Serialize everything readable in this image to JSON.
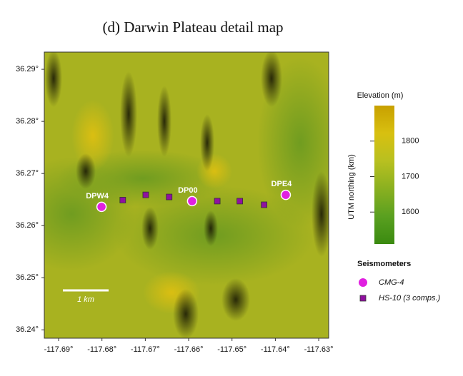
{
  "chart_data": {
    "type": "scatter",
    "title": "(d) Darwin Plateau detail map",
    "xlim": [
      -117.6933,
      -117.6277
    ],
    "ylim": [
      36.2384,
      36.2933
    ],
    "xticks": [
      {
        "value": -117.69,
        "label": "-117.69°"
      },
      {
        "value": -117.68,
        "label": "-117.68°"
      },
      {
        "value": -117.67,
        "label": "-117.67°"
      },
      {
        "value": -117.66,
        "label": "-117.66°"
      },
      {
        "value": -117.65,
        "label": "-117.65°"
      },
      {
        "value": -117.64,
        "label": "-117.64°"
      },
      {
        "value": -117.63,
        "label": "-117.63°"
      }
    ],
    "yticks": [
      {
        "value": 36.24,
        "label": "36.24°"
      },
      {
        "value": 36.25,
        "label": "36.25°"
      },
      {
        "value": 36.26,
        "label": "36.26°"
      },
      {
        "value": 36.27,
        "label": "36.27°"
      },
      {
        "value": 36.28,
        "label": "36.28°"
      },
      {
        "value": 36.29,
        "label": "36.29°"
      }
    ],
    "legend_title": "Seismometers",
    "series": [
      {
        "name": "CMG-4",
        "color": "#e020e0",
        "marker": "circle",
        "x": [
          -117.6801,
          -117.6592,
          -117.6376
        ],
        "y": [
          36.2636,
          36.2647,
          36.2659
        ],
        "point_labels": [
          "DPW4",
          "DP00",
          "DPE4"
        ]
      },
      {
        "name": "HS-10 (3 comps.)",
        "color": "#9010a0",
        "marker": "square",
        "x": [
          -117.6752,
          -117.6699,
          -117.6645,
          -117.6534,
          -117.6482,
          -117.6426
        ],
        "y": [
          36.2649,
          36.2659,
          36.2655,
          36.2647,
          36.2647,
          36.264
        ]
      }
    ],
    "colorbar": {
      "label": "Elevation (m)",
      "lim": [
        1510,
        1900
      ],
      "ticks": [
        1600,
        1700,
        1800
      ],
      "colors": [
        "#3a8a10",
        "#5aa020",
        "#8ab020",
        "#b8c020",
        "#d8c010",
        "#c8a000"
      ]
    },
    "side_label": "UTM northing (km)",
    "scale_bar_label": "1 km"
  }
}
